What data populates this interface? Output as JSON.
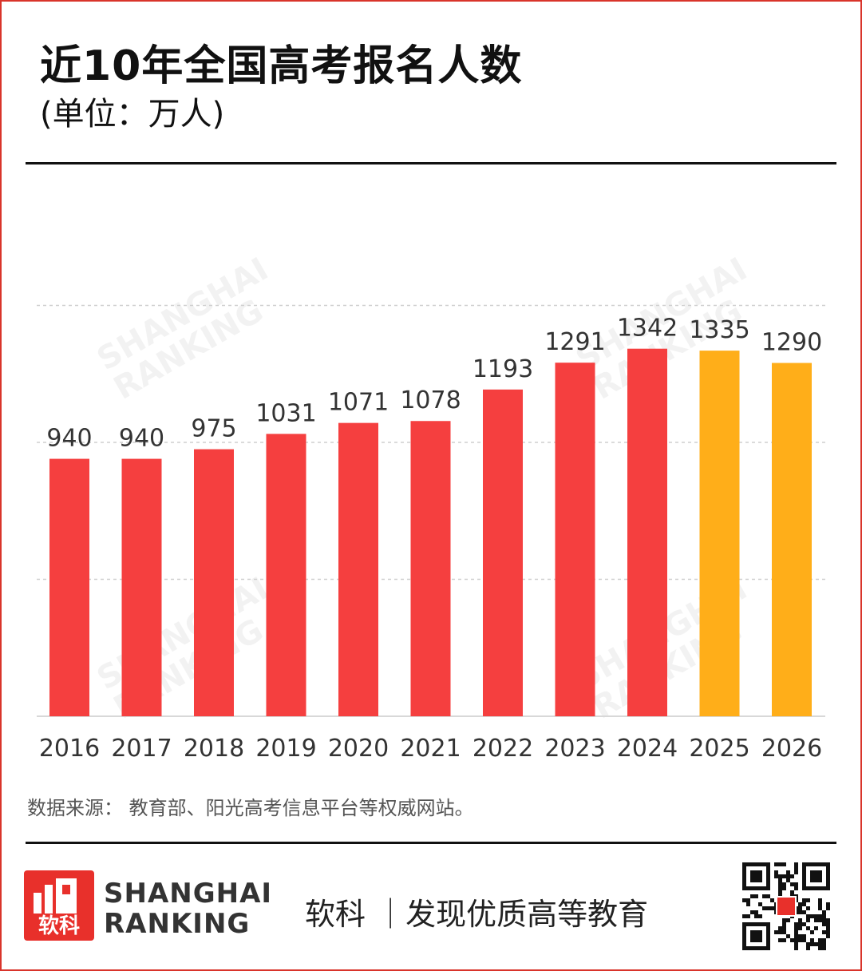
{
  "header": {
    "title": "近10年全国高考报名人数",
    "subtitle": "(单位：万人)"
  },
  "chart_data": {
    "type": "bar",
    "categories": [
      "2016",
      "2017",
      "2018",
      "2019",
      "2020",
      "2021",
      "2022",
      "2023",
      "2024",
      "2025",
      "2026"
    ],
    "values": [
      940,
      940,
      975,
      1031,
      1071,
      1078,
      1193,
      1291,
      1342,
      1335,
      1290
    ],
    "colors": [
      "#f53f3f",
      "#f53f3f",
      "#f53f3f",
      "#f53f3f",
      "#f53f3f",
      "#f53f3f",
      "#f53f3f",
      "#f53f3f",
      "#f53f3f",
      "#ffae19",
      "#ffae19"
    ],
    "ylim": [
      0,
      1500
    ],
    "grid": true,
    "gridlines": [
      500,
      1000,
      1500
    ]
  },
  "footer": {
    "source": "数据来源： 教育部、阳光高考信息平台等权威网站。",
    "brand_line1": "SHANGHAI",
    "brand_line2": "RANKING",
    "logo_cn": "软科",
    "slogan": "软科 ｜发现优质高等教育"
  },
  "watermark": {
    "line1": "SHANGHAI",
    "line2": "RANKING"
  },
  "colors": {
    "accent_red": "#e8302b",
    "bar_red": "#f53f3f",
    "bar_orange": "#ffae19"
  }
}
